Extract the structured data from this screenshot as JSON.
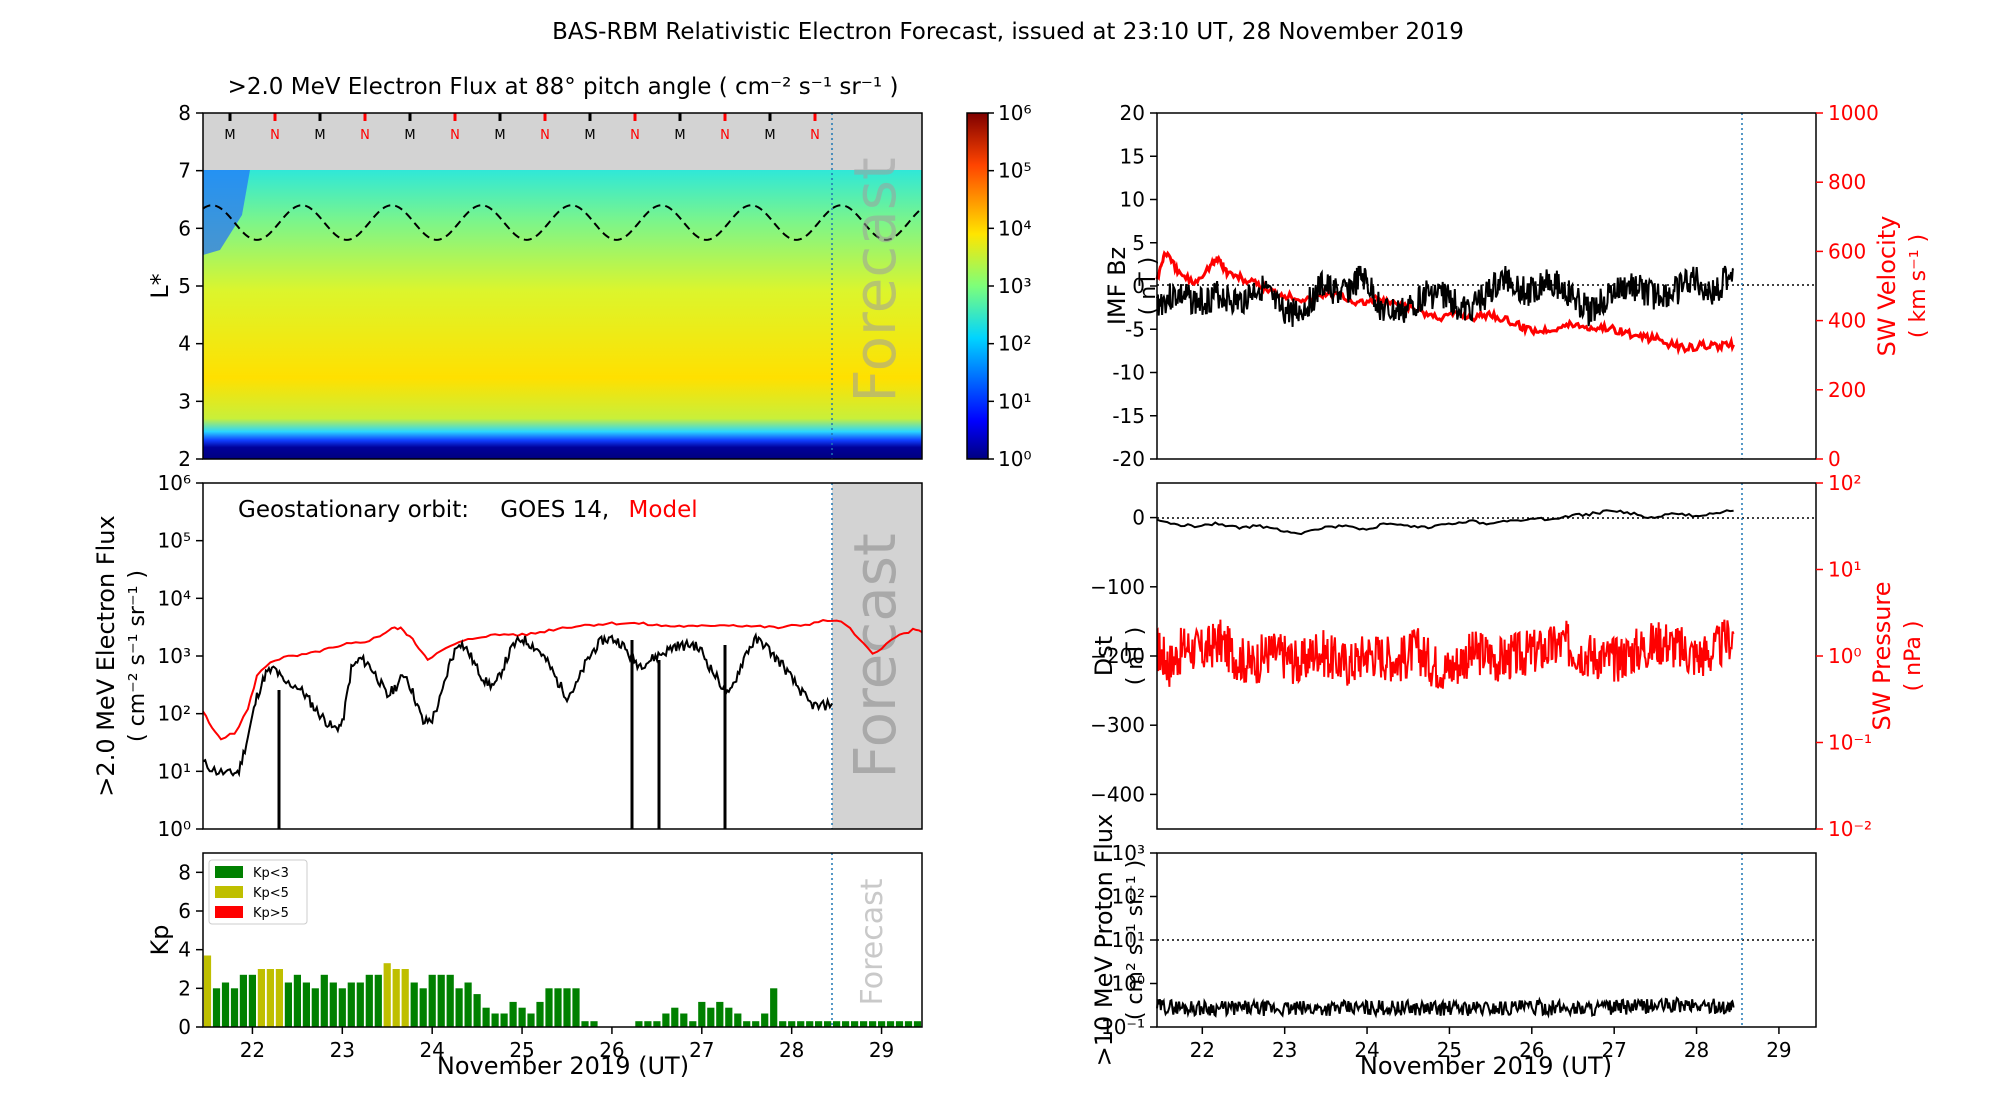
{
  "figure": {
    "title": "BAS-RBM Relativistic Electron Forecast, issued at 23:10 UT, 28 November 2019"
  },
  "chart_data": [
    {
      "id": "flux-lstar",
      "type": "heatmap",
      "title": ">2.0 MeV Electron Flux at 88° pitch angle ( cm⁻² s⁻¹ sr⁻¹ )",
      "xlabel": "",
      "ylabel": "L*",
      "xlim": [
        21.45,
        29.45
      ],
      "ylim": [
        2,
        8
      ],
      "yticks": [
        2,
        3,
        4,
        5,
        6,
        7,
        8
      ],
      "forecast_start": 28.45,
      "forecast_label": "Forecast",
      "colorbar": {
        "scale": "log",
        "ticks": [
          "10⁰",
          "10¹",
          "10²",
          "10³",
          "10⁴",
          "10⁵",
          "10⁶"
        ]
      },
      "orbit_marks": {
        "labels": [
          "M",
          "N",
          "M",
          "N",
          "M",
          "N",
          "M",
          "N",
          "M",
          "N",
          "M",
          "N",
          "M",
          "N"
        ],
        "colors": {
          "M": "#000000",
          "N": "#ff0000"
        }
      },
      "magnetopause_line": {
        "mean": 6.1,
        "amplitude": 0.3,
        "period_days": 1.0
      }
    },
    {
      "id": "geo-flux",
      "type": "line",
      "annotation": {
        "prefix": "Geostationary orbit:",
        "satellite": "GOES 14,",
        "model": "Model"
      },
      "ylabel": ">2.0 MeV Electron Flux",
      "yunits": "( cm⁻² s⁻¹ sr⁻¹ )",
      "yscale": "log",
      "ylim": [
        1,
        1000000
      ],
      "yticks": [
        "10⁰",
        "10¹",
        "10²",
        "10³",
        "10⁴",
        "10⁵",
        "10⁶"
      ],
      "xlim": [
        21.45,
        29.45
      ],
      "forecast_start": 28.45,
      "forecast_label": "Forecast",
      "series": [
        {
          "name": "GOES 14",
          "color": "#000000",
          "x": [
            21.45,
            21.6,
            21.75,
            21.85,
            21.95,
            22.05,
            22.15,
            22.25,
            22.35,
            22.5,
            22.6,
            22.7,
            22.8,
            22.9,
            23.0,
            23.1,
            23.2,
            23.3,
            23.4,
            23.5,
            23.6,
            23.7,
            23.8,
            23.9,
            24.0,
            24.1,
            24.2,
            24.3,
            24.4,
            24.5,
            24.6,
            24.7,
            24.8,
            24.9,
            25.0,
            25.1,
            25.2,
            25.3,
            25.4,
            25.5,
            25.6,
            25.7,
            25.8,
            25.9,
            26.0,
            26.1,
            26.2,
            26.3,
            26.4,
            26.5,
            26.6,
            26.7,
            26.8,
            26.9,
            27.0,
            27.1,
            27.2,
            27.3,
            27.4,
            27.5,
            27.6,
            27.7,
            27.8,
            27.9,
            28.0,
            28.1,
            28.2,
            28.3,
            28.45
          ],
          "y": [
            14,
            10,
            9,
            10,
            40,
            200,
            500,
            600,
            350,
            300,
            200,
            120,
            80,
            55,
            65,
            600,
            900,
            700,
            400,
            200,
            300,
            500,
            200,
            70,
            80,
            200,
            800,
            1800,
            1200,
            600,
            350,
            300,
            700,
            1500,
            2000,
            1600,
            1200,
            700,
            350,
            200,
            300,
            700,
            1300,
            1900,
            2000,
            1700,
            1000,
            700,
            800,
            1000,
            1200,
            1500,
            1500,
            1600,
            1200,
            600,
            350,
            200,
            500,
            1200,
            1900,
            1600,
            1000,
            700,
            400,
            250,
            150,
            130,
            150
          ]
        },
        {
          "name": "Model",
          "color": "#ff0000",
          "x": [
            21.45,
            21.55,
            21.65,
            21.8,
            21.95,
            22.05,
            22.2,
            22.35,
            22.5,
            22.65,
            22.8,
            22.95,
            23.05,
            23.2,
            23.35,
            23.45,
            23.55,
            23.65,
            23.75,
            23.85,
            23.95,
            24.1,
            24.25,
            24.4,
            24.55,
            24.7,
            24.85,
            25.0,
            25.15,
            25.3,
            25.45,
            25.6,
            25.75,
            25.9,
            26.05,
            26.2,
            26.35,
            26.5,
            26.65,
            26.8,
            26.95,
            27.1,
            27.25,
            27.4,
            27.55,
            27.7,
            27.85,
            28.0,
            28.15,
            28.3,
            28.45,
            28.6,
            28.75,
            28.9,
            29.05,
            29.2,
            29.35,
            29.45
          ],
          "y": [
            110,
            55,
            38,
            45,
            120,
            450,
            800,
            950,
            1000,
            1100,
            1300,
            1400,
            1600,
            1700,
            2000,
            2400,
            3000,
            3000,
            2200,
            1400,
            900,
            1200,
            1600,
            1900,
            2200,
            2300,
            2400,
            2300,
            2500,
            2800,
            3100,
            3300,
            3500,
            3600,
            3700,
            3700,
            3600,
            3400,
            3300,
            3300,
            3200,
            3400,
            3500,
            3400,
            3300,
            3200,
            3100,
            3300,
            3500,
            3900,
            4200,
            3600,
            1900,
            1100,
            1600,
            2300,
            2800,
            2600
          ]
        }
      ]
    },
    {
      "id": "kp-index",
      "type": "bar",
      "xlabel": "November 2019 (UT)",
      "ylabel": "Kp",
      "ylim": [
        0,
        9
      ],
      "yticks": [
        0,
        2,
        4,
        6,
        8
      ],
      "xticks": [
        "22",
        "23",
        "24",
        "25",
        "26",
        "27",
        "28",
        "29"
      ],
      "xlim": [
        21.45,
        29.45
      ],
      "bar_width_days": 0.1,
      "forecast_start": 28.45,
      "forecast_label": "Forecast",
      "legend": [
        {
          "name": "Kp<3",
          "color": "#008000"
        },
        {
          "name": "Kp<5",
          "color": "#bfbf00"
        },
        {
          "name": "Kp>5",
          "color": "#ff0000"
        }
      ],
      "x": [
        21.5,
        21.6,
        21.7,
        21.8,
        21.9,
        22.0,
        22.1,
        22.2,
        22.3,
        22.4,
        22.5,
        22.6,
        22.7,
        22.8,
        22.9,
        23.0,
        23.1,
        23.2,
        23.3,
        23.4,
        23.5,
        23.6,
        23.7,
        23.8,
        23.9,
        24.0,
        24.1,
        24.2,
        24.3,
        24.4,
        24.5,
        24.6,
        24.7,
        24.8,
        24.9,
        25.0,
        25.1,
        25.2,
        25.3,
        25.4,
        25.5,
        25.6,
        25.7,
        25.8,
        26.3,
        26.4,
        26.5,
        26.6,
        26.7,
        26.8,
        26.9,
        27.0,
        27.1,
        27.2,
        27.3,
        27.4,
        27.5,
        27.6,
        27.7,
        27.8,
        27.9,
        28.0,
        28.1,
        28.2,
        28.3,
        28.4,
        28.5,
        28.6,
        28.7,
        28.8,
        28.9,
        29.0,
        29.1,
        29.2,
        29.3,
        29.4
      ],
      "values": [
        3.7,
        2.0,
        2.3,
        2.0,
        2.7,
        2.7,
        3.0,
        3.0,
        3.0,
        2.3,
        2.7,
        2.3,
        2.0,
        2.7,
        2.3,
        2.0,
        2.3,
        2.3,
        2.7,
        2.7,
        3.3,
        3.0,
        3.0,
        2.3,
        2.0,
        2.7,
        2.7,
        2.7,
        2.0,
        2.3,
        1.7,
        1.0,
        0.7,
        0.7,
        1.3,
        1.0,
        0.7,
        1.3,
        2.0,
        2.0,
        2.0,
        2.0,
        0.3,
        0.3,
        0.3,
        0.3,
        0.3,
        0.7,
        1.0,
        0.7,
        0.3,
        1.3,
        1.0,
        1.3,
        1.0,
        0.7,
        0.3,
        0.3,
        0.7,
        2.0,
        0.3,
        0.3,
        0.3,
        0.3,
        0.3,
        0.3,
        0.3,
        0.3,
        0.3,
        0.3,
        0.3,
        0.3,
        0.3,
        0.3,
        0.3,
        0.3
      ]
    },
    {
      "id": "imf-sw",
      "type": "line",
      "ylabel": "IMF Bz",
      "yunits": "( nT )",
      "ylim": [
        -20,
        20
      ],
      "yticks": [
        -20,
        -15,
        -10,
        -5,
        0,
        5,
        10,
        15,
        20
      ],
      "y2label": "SW Velocity",
      "y2units": "( km s⁻¹ )",
      "y2lim": [
        0,
        1000
      ],
      "y2ticks": [
        0,
        200,
        400,
        600,
        800,
        1000
      ],
      "xlim": [
        21.45,
        29.45
      ],
      "forecast_start": 28.45,
      "series": [
        {
          "name": "IMF Bz",
          "color": "#000000",
          "axis": "left",
          "x": [
            21.45,
            21.7,
            21.95,
            22.2,
            22.45,
            22.7,
            22.95,
            23.2,
            23.45,
            23.7,
            23.95,
            24.2,
            24.45,
            24.7,
            24.95,
            25.2,
            25.45,
            25.7,
            25.95,
            26.2,
            26.45,
            26.7,
            26.95,
            27.2,
            27.45,
            27.7,
            27.95,
            28.2,
            28.45
          ],
          "y": [
            -2,
            -1,
            -2,
            -1,
            -2,
            0,
            -3,
            -3,
            0,
            -1,
            1,
            -3,
            -3,
            -1,
            -1,
            -3,
            -1,
            1,
            -1,
            1,
            -1,
            -3,
            -1,
            0,
            -1,
            -1,
            1,
            -1,
            2
          ]
        },
        {
          "name": "SW Velocity",
          "color": "#ff0000",
          "axis": "right",
          "x": [
            21.45,
            21.55,
            21.7,
            21.9,
            22.1,
            22.2,
            22.3,
            22.5,
            22.7,
            22.9,
            23.1,
            23.3,
            23.5,
            23.7,
            23.9,
            24.1,
            24.3,
            24.5,
            24.7,
            24.9,
            25.1,
            25.3,
            25.5,
            25.7,
            25.9,
            26.1,
            26.3,
            26.5,
            26.7,
            26.9,
            27.1,
            27.3,
            27.5,
            27.7,
            27.9,
            28.1,
            28.3,
            28.45
          ],
          "y": [
            520,
            600,
            540,
            510,
            560,
            580,
            540,
            520,
            500,
            480,
            470,
            460,
            480,
            470,
            450,
            460,
            450,
            440,
            420,
            410,
            420,
            410,
            420,
            400,
            380,
            370,
            380,
            390,
            380,
            380,
            370,
            350,
            350,
            330,
            320,
            330,
            325,
            330
          ]
        }
      ]
    },
    {
      "id": "dst-pressure",
      "type": "line",
      "ylabel": "Dst",
      "yunits": "( nT )",
      "ylim": [
        -450,
        50
      ],
      "yticks": [
        -400,
        -300,
        -200,
        -100,
        0
      ],
      "y2label": "SW Pressure",
      "y2units": "( nPa )",
      "y2scale": "log",
      "y2lim": [
        0.01,
        100
      ],
      "y2ticks": [
        "10⁻²",
        "10⁻¹",
        "10⁰",
        "10¹",
        "10²"
      ],
      "xlim": [
        21.45,
        29.45
      ],
      "forecast_start": 28.45,
      "series": [
        {
          "name": "Dst",
          "color": "#000000",
          "axis": "left",
          "x": [
            21.45,
            21.7,
            21.95,
            22.2,
            22.45,
            22.7,
            22.95,
            23.2,
            23.45,
            23.7,
            23.95,
            24.2,
            24.45,
            24.7,
            24.95,
            25.2,
            25.45,
            25.7,
            25.95,
            26.2,
            26.45,
            26.7,
            26.95,
            27.2,
            27.45,
            27.7,
            27.95,
            28.2,
            28.45
          ],
          "y": [
            -5,
            -10,
            -12,
            -8,
            -15,
            -12,
            -18,
            -22,
            -15,
            -12,
            -18,
            -10,
            -12,
            -15,
            -10,
            -5,
            -8,
            -5,
            -3,
            -2,
            2,
            5,
            10,
            6,
            0,
            5,
            3,
            6,
            10
          ]
        },
        {
          "name": "SW Pressure",
          "color": "#ff0000",
          "axis": "right",
          "x": [
            21.45,
            21.6,
            21.8,
            22.0,
            22.2,
            22.4,
            22.6,
            22.8,
            23.0,
            23.2,
            23.4,
            23.6,
            23.8,
            24.0,
            24.2,
            24.4,
            24.6,
            24.8,
            25.0,
            25.2,
            25.4,
            25.6,
            25.8,
            26.0,
            26.2,
            26.4,
            26.6,
            26.8,
            27.0,
            27.2,
            27.4,
            27.6,
            27.8,
            28.0,
            28.2,
            28.45
          ],
          "y": [
            1.2,
            0.8,
            1.3,
            1.1,
            1.5,
            1.0,
            0.8,
            1.1,
            1.0,
            0.8,
            1.2,
            0.9,
            0.8,
            1.1,
            1.0,
            0.9,
            1.2,
            0.8,
            0.7,
            1.0,
            1.1,
            0.9,
            1.0,
            1.1,
            1.2,
            1.4,
            1.1,
            1.0,
            0.9,
            1.1,
            1.3,
            1.5,
            1.2,
            1.0,
            1.1,
            1.8
          ]
        }
      ]
    },
    {
      "id": "proton-flux",
      "type": "line",
      "xlabel": "November 2019 (UT)",
      "ylabel": ">10 MeV Proton Flux",
      "yunits": "( cm² s⁻¹ sr⁻¹ )",
      "yscale": "log",
      "ylim": [
        0.1,
        1000
      ],
      "yticks": [
        "10⁻¹",
        "10⁰",
        "10¹",
        "10²",
        "10³"
      ],
      "xticks": [
        "22",
        "23",
        "24",
        "25",
        "26",
        "27",
        "28",
        "29"
      ],
      "xlim": [
        21.45,
        29.45
      ],
      "forecast_start": 28.45,
      "threshold": 10,
      "series": [
        {
          "name": "Proton Flux",
          "color": "#000000",
          "x": [
            21.45,
            21.8,
            22.2,
            22.6,
            23.0,
            23.4,
            23.8,
            24.2,
            24.6,
            25.0,
            25.4,
            25.8,
            26.2,
            26.6,
            27.0,
            27.4,
            27.8,
            28.2,
            28.45
          ],
          "y": [
            0.3,
            0.28,
            0.27,
            0.27,
            0.26,
            0.27,
            0.27,
            0.28,
            0.27,
            0.27,
            0.27,
            0.28,
            0.28,
            0.27,
            0.28,
            0.3,
            0.32,
            0.3,
            0.28
          ]
        }
      ]
    }
  ]
}
